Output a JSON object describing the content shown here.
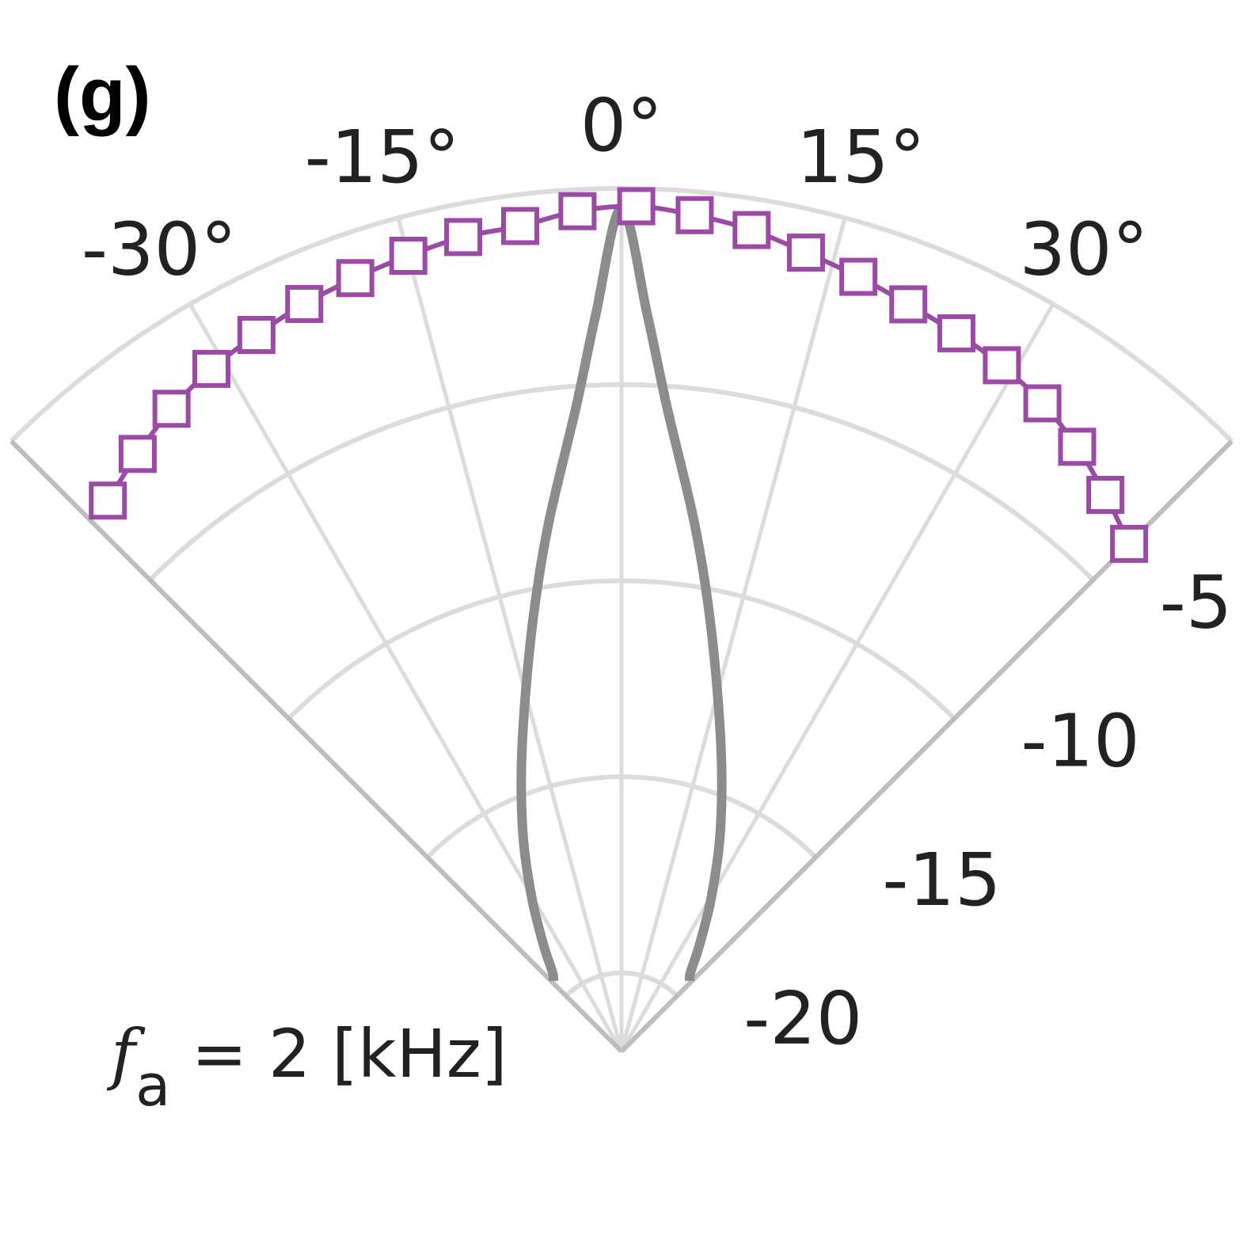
{
  "panel_label": "(g)",
  "annotation": {
    "symbol": "f",
    "subscript": "a",
    "rest": " = 2 [kHz]"
  },
  "colors": {
    "measured": "#9b4aa6",
    "reference": "#8c8c8c",
    "grid": "#dcdcdc",
    "sector_edge": "#bdbdbd"
  },
  "chart_data": {
    "type": "polar-sector",
    "theta_range_deg": [
      -45,
      45
    ],
    "r_range_db": [
      -22,
      0
    ],
    "angle_ticks": [
      {
        "deg": -30,
        "label": "-30°"
      },
      {
        "deg": -15,
        "label": "-15°"
      },
      {
        "deg": 0,
        "label": "0°"
      },
      {
        "deg": 15,
        "label": "15°"
      },
      {
        "deg": 30,
        "label": "30°"
      }
    ],
    "radial_ticks": [
      {
        "value": -5,
        "label": "-5"
      },
      {
        "value": -10,
        "label": "-10"
      },
      {
        "value": -15,
        "label": "-15"
      },
      {
        "value": -20,
        "label": "-20"
      }
    ],
    "grid": true,
    "series": [
      {
        "marker": "square-open",
        "theta_deg": [
          -43,
          -39,
          -35,
          -31,
          -27,
          -23,
          -19,
          -15,
          -11,
          -7,
          -3,
          1,
          5,
          9,
          13,
          17,
          21,
          25,
          29,
          33,
          37,
          41,
          45
        ],
        "r_db": [
          -2.8,
          -2.4,
          -2.0,
          -1.7,
          -1.5,
          -1.3,
          -1.15,
          -1.0,
          -0.85,
          -0.8,
          -0.55,
          -0.45,
          -0.6,
          -0.8,
          -1.1,
          -1.35,
          -1.6,
          -1.8,
          -2.0,
          -2.3,
          -2.7,
          -3.2,
          -3.7
        ]
      },
      {
        "marker": "none",
        "theta_deg": [
          -44,
          -42,
          -40,
          -36,
          -30,
          -24,
          -18,
          -12,
          -8,
          -4,
          -2,
          0,
          2,
          4,
          8,
          12,
          18,
          24,
          30,
          36,
          40,
          42,
          44
        ],
        "r_db": [
          -19.5,
          -19.4,
          -19.2,
          -18.6,
          -17.4,
          -15.8,
          -13.8,
          -11.0,
          -8.5,
          -5.5,
          -3.2,
          -0.5,
          -3.2,
          -5.5,
          -8.5,
          -11.0,
          -13.8,
          -15.8,
          -17.4,
          -18.6,
          -19.2,
          -19.4,
          -19.5
        ]
      }
    ]
  }
}
